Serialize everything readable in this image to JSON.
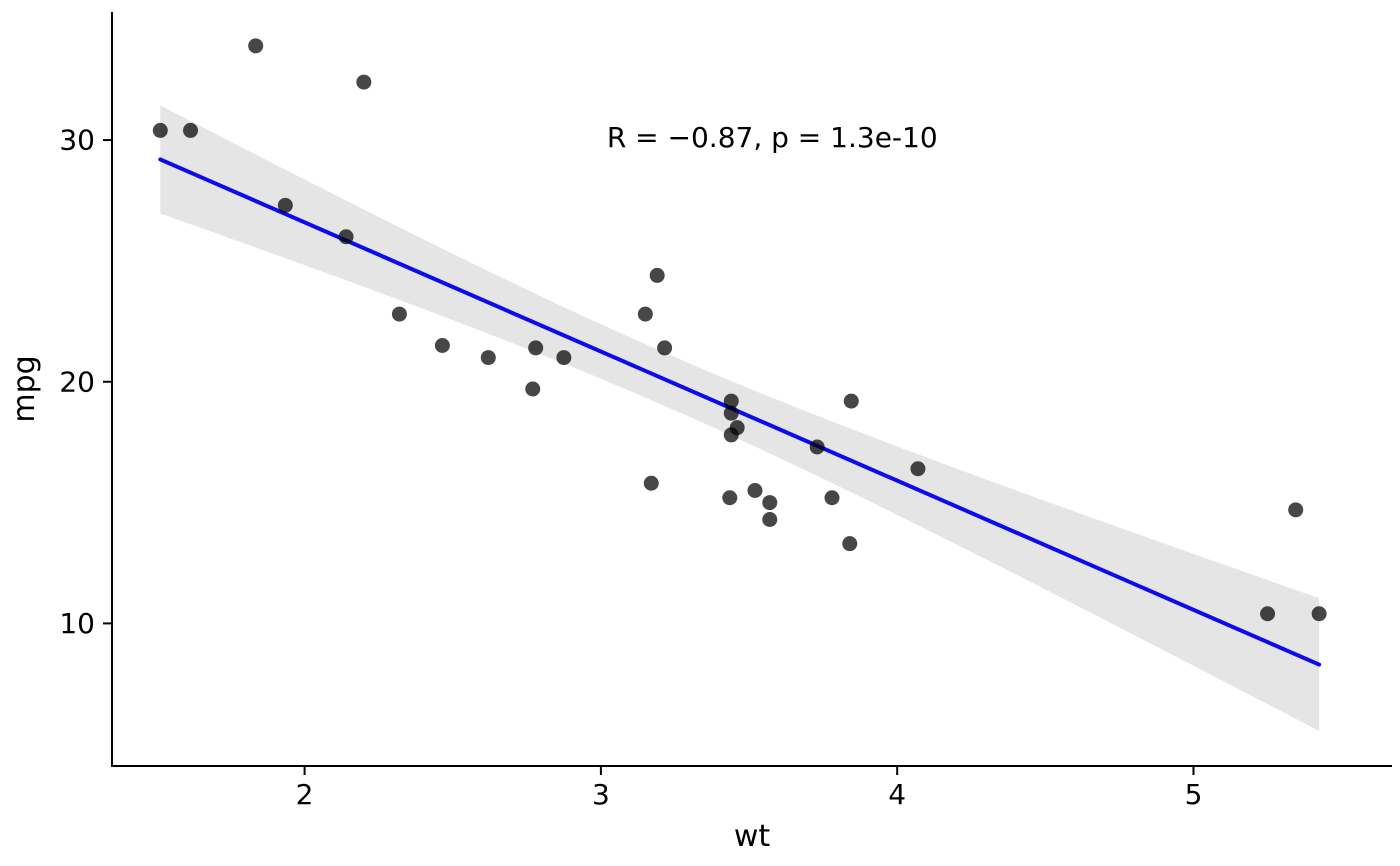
{
  "figure": {
    "background": "#ffffff"
  },
  "chart_data": {
    "type": "scatter",
    "title": "",
    "xlabel": "wt",
    "ylabel": "mpg",
    "xlim": [
      1.35,
      5.67
    ],
    "ylim": [
      4.1,
      35.3
    ],
    "xticks": [
      2,
      3,
      4,
      5
    ],
    "yticks": [
      10,
      20,
      30
    ],
    "grid": false,
    "legend": "none",
    "annotation": {
      "text": "R = −0.87, p = 1.3e-10",
      "x": 3.02,
      "y": 30.1,
      "align": "left"
    },
    "points": [
      [
        2.62,
        21.0
      ],
      [
        2.875,
        21.0
      ],
      [
        2.32,
        22.8
      ],
      [
        3.215,
        21.4
      ],
      [
        3.44,
        18.7
      ],
      [
        3.46,
        18.1
      ],
      [
        3.57,
        14.3
      ],
      [
        3.19,
        24.4
      ],
      [
        3.15,
        22.8
      ],
      [
        3.44,
        19.2
      ],
      [
        3.44,
        17.8
      ],
      [
        4.07,
        16.4
      ],
      [
        3.73,
        17.3
      ],
      [
        3.78,
        15.2
      ],
      [
        5.25,
        10.4
      ],
      [
        5.424,
        10.4
      ],
      [
        5.345,
        14.7
      ],
      [
        2.2,
        32.4
      ],
      [
        1.615,
        30.4
      ],
      [
        1.835,
        33.9
      ],
      [
        2.465,
        21.5
      ],
      [
        3.52,
        15.5
      ],
      [
        3.435,
        15.2
      ],
      [
        3.84,
        13.3
      ],
      [
        3.845,
        19.2
      ],
      [
        1.935,
        27.3
      ],
      [
        2.14,
        26.0
      ],
      [
        1.513,
        30.4
      ],
      [
        3.17,
        15.8
      ],
      [
        2.77,
        19.7
      ],
      [
        3.57,
        15.0
      ],
      [
        2.78,
        21.4
      ]
    ],
    "point_style": {
      "color": "#000000",
      "opacity": 0.72,
      "radius": 7.5
    },
    "regression": {
      "slope": -5.3445,
      "intercept": 37.285,
      "x_start": 1.513,
      "x_end": 5.424,
      "line_color": "#0b0bee",
      "line_width": 4,
      "ci": {
        "t": 2.042,
        "s": 3.046,
        "n": 32,
        "mean_x": 3.21725,
        "sxx": 29.678,
        "fill": "#999999",
        "fill_opacity": 0.25
      }
    },
    "axis_color": "#000000"
  }
}
